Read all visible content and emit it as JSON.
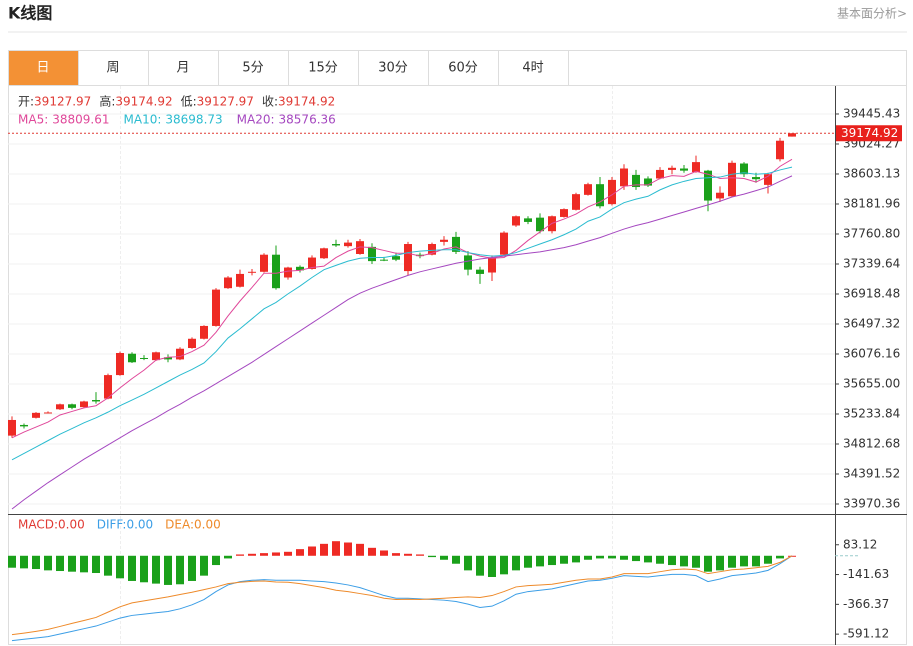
{
  "header": {
    "title": "K线图",
    "link": "基本面分析>"
  },
  "tabs": [
    "日",
    "周",
    "月",
    "5分",
    "15分",
    "30分",
    "60分",
    "4时"
  ],
  "chart_data": {
    "type": "candlestick",
    "up_color": "#ee2a24",
    "down_color": "#1aa01a",
    "ylim": [
      33844,
      39754
    ],
    "yticks": [
      39445.43,
      39024.27,
      38603.13,
      38181.96,
      {
        "value": 37760.8,
        "label": "37760.80"
      },
      37339.64,
      36918.48,
      36497.32,
      36076.16,
      {
        "value": 35655,
        "label": "35655.00"
      },
      35233.84,
      34812.68,
      34391.52,
      33970.36
    ],
    "grid": true,
    "ohlc_info": [
      {
        "label": "开:",
        "value": 39127.97
      },
      {
        "label": "高:",
        "value": 39174.92
      },
      {
        "label": "低:",
        "value": 39127.97
      },
      {
        "label": "收:",
        "value": 39174.92
      }
    ],
    "last_price": 39174.92,
    "candles": [
      {
        "open": 34930,
        "high": 35200,
        "low": 34900,
        "close": 35150
      },
      {
        "open": 35080,
        "high": 35100,
        "low": 35030,
        "close": 35060
      },
      {
        "open": 35180,
        "high": 35260,
        "low": 35170,
        "close": 35250
      },
      {
        "open": 35250,
        "high": 35270,
        "low": 35240,
        "close": 35255
      },
      {
        "open": 35300,
        "high": 35380,
        "low": 35290,
        "close": 35370
      },
      {
        "open": 35370,
        "high": 35380,
        "low": 35300,
        "close": 35320
      },
      {
        "open": 35330,
        "high": 35420,
        "low": 35320,
        "close": 35410
      },
      {
        "open": 35430,
        "high": 35540,
        "low": 35380,
        "close": 35410
      },
      {
        "open": 35450,
        "high": 35800,
        "low": 35440,
        "close": 35780
      },
      {
        "open": 35780,
        "high": 36110,
        "low": 35770,
        "close": 36090
      },
      {
        "open": 36080,
        "high": 36100,
        "low": 35950,
        "close": 35960
      },
      {
        "open": 36020,
        "high": 36060,
        "low": 35990,
        "close": 36010
      },
      {
        "open": 35990,
        "high": 36110,
        "low": 35980,
        "close": 36100
      },
      {
        "open": 36030,
        "high": 36070,
        "low": 35960,
        "close": 36000
      },
      {
        "open": 36000,
        "high": 36170,
        "low": 35990,
        "close": 36150
      },
      {
        "open": 36160,
        "high": 36310,
        "low": 36150,
        "close": 36290
      },
      {
        "open": 36290,
        "high": 36480,
        "low": 36280,
        "close": 36470
      },
      {
        "open": 36470,
        "high": 37000,
        "low": 36460,
        "close": 36980
      },
      {
        "open": 37000,
        "high": 37170,
        "low": 36990,
        "close": 37150
      },
      {
        "open": 37020,
        "high": 37260,
        "low": 37010,
        "close": 37200
      },
      {
        "open": 37220,
        "high": 37270,
        "low": 37180,
        "close": 37230
      },
      {
        "open": 37230,
        "high": 37490,
        "low": 37220,
        "close": 37470
      },
      {
        "open": 37470,
        "high": 37600,
        "low": 36980,
        "close": 37000
      },
      {
        "open": 37150,
        "high": 37300,
        "low": 37120,
        "close": 37290
      },
      {
        "open": 37300,
        "high": 37320,
        "low": 37220,
        "close": 37250
      },
      {
        "open": 37270,
        "high": 37460,
        "low": 37260,
        "close": 37430
      },
      {
        "open": 37420,
        "high": 37570,
        "low": 37410,
        "close": 37560
      },
      {
        "open": 37620,
        "high": 37680,
        "low": 37580,
        "close": 37600
      },
      {
        "open": 37590,
        "high": 37680,
        "low": 37570,
        "close": 37640
      },
      {
        "open": 37480,
        "high": 37690,
        "low": 37470,
        "close": 37660
      },
      {
        "open": 37580,
        "high": 37630,
        "low": 37340,
        "close": 37380
      },
      {
        "open": 37400,
        "high": 37440,
        "low": 37380,
        "close": 37390
      },
      {
        "open": 37450,
        "high": 37500,
        "low": 37380,
        "close": 37400
      },
      {
        "open": 37240,
        "high": 37650,
        "low": 37180,
        "close": 37620
      },
      {
        "open": 37470,
        "high": 37500,
        "low": 37420,
        "close": 37450
      },
      {
        "open": 37470,
        "high": 37640,
        "low": 37460,
        "close": 37620
      },
      {
        "open": 37650,
        "high": 37730,
        "low": 37600,
        "close": 37680
      },
      {
        "open": 37720,
        "high": 37790,
        "low": 37480,
        "close": 37510
      },
      {
        "open": 37460,
        "high": 37520,
        "low": 37180,
        "close": 37260
      },
      {
        "open": 37260,
        "high": 37300,
        "low": 37060,
        "close": 37200
      },
      {
        "open": 37220,
        "high": 37460,
        "low": 37100,
        "close": 37420
      },
      {
        "open": 37470,
        "high": 37800,
        "low": 37460,
        "close": 37780
      },
      {
        "open": 37880,
        "high": 38020,
        "low": 37860,
        "close": 38010
      },
      {
        "open": 37980,
        "high": 38010,
        "low": 37900,
        "close": 37930
      },
      {
        "open": 37990,
        "high": 38050,
        "low": 37770,
        "close": 37800
      },
      {
        "open": 37800,
        "high": 38020,
        "low": 37770,
        "close": 38010
      },
      {
        "open": 38000,
        "high": 38120,
        "low": 37990,
        "close": 38110
      },
      {
        "open": 38100,
        "high": 38340,
        "low": 38090,
        "close": 38320
      },
      {
        "open": 38310,
        "high": 38480,
        "low": 38300,
        "close": 38460
      },
      {
        "open": 38460,
        "high": 38560,
        "low": 38120,
        "close": 38150
      },
      {
        "open": 38180,
        "high": 38560,
        "low": 38160,
        "close": 38520
      },
      {
        "open": 38430,
        "high": 38740,
        "low": 38380,
        "close": 38680
      },
      {
        "open": 38590,
        "high": 38660,
        "low": 38380,
        "close": 38420
      },
      {
        "open": 38540,
        "high": 38570,
        "low": 38420,
        "close": 38440
      },
      {
        "open": 38540,
        "high": 38700,
        "low": 38530,
        "close": 38660
      },
      {
        "open": 38660,
        "high": 38720,
        "low": 38600,
        "close": 38690
      },
      {
        "open": 38680,
        "high": 38730,
        "low": 38620,
        "close": 38650
      },
      {
        "open": 38630,
        "high": 38860,
        "low": 38620,
        "close": 38770
      },
      {
        "open": 38650,
        "high": 38660,
        "low": 38080,
        "close": 38230
      },
      {
        "open": 38260,
        "high": 38430,
        "low": 38210,
        "close": 38340
      },
      {
        "open": 38290,
        "high": 38790,
        "low": 38280,
        "close": 38760
      },
      {
        "open": 38750,
        "high": 38770,
        "low": 38560,
        "close": 38600
      },
      {
        "open": 38560,
        "high": 38620,
        "low": 38480,
        "close": 38530
      },
      {
        "open": 38450,
        "high": 38620,
        "low": 38330,
        "close": 38600
      },
      {
        "open": 38810,
        "high": 39110,
        "low": 38780,
        "close": 39070
      },
      {
        "open": 39127.97,
        "high": 39174.92,
        "low": 39127.97,
        "close": 39174.92
      }
    ],
    "ma_series": [
      {
        "label": "MA5:",
        "latest": 38809.61,
        "color": "#e0489a",
        "values": [
          34900,
          34980,
          35050,
          35120,
          35220,
          35270,
          35320,
          35350,
          35460,
          35600,
          35730,
          35850,
          35990,
          36030,
          36040,
          36110,
          36200,
          36380,
          36610,
          36820,
          37010,
          37210,
          37210,
          37240,
          37250,
          37290,
          37310,
          37430,
          37520,
          37580,
          37570,
          37530,
          37490,
          37490,
          37450,
          37490,
          37550,
          37580,
          37500,
          37450,
          37420,
          37430,
          37530,
          37670,
          37790,
          37910,
          37970,
          38040,
          38140,
          38210,
          38310,
          38430,
          38450,
          38450,
          38540,
          38580,
          38570,
          38640,
          38600,
          38540,
          38550,
          38540,
          38490,
          38570,
          38710,
          38809.61
        ]
      },
      {
        "label": "MA10:",
        "latest": 38698.73,
        "color": "#2bbcd0",
        "values": [
          34590,
          34680,
          34770,
          34860,
          34950,
          35030,
          35110,
          35180,
          35260,
          35350,
          35430,
          35510,
          35600,
          35690,
          35780,
          35860,
          35950,
          36110,
          36300,
          36430,
          36570,
          36710,
          36800,
          36920,
          37030,
          37150,
          37260,
          37320,
          37380,
          37420,
          37430,
          37430,
          37460,
          37500,
          37520,
          37530,
          37540,
          37540,
          37500,
          37470,
          37450,
          37460,
          37500,
          37560,
          37620,
          37680,
          37750,
          37830,
          37940,
          38000,
          38110,
          38200,
          38250,
          38290,
          38380,
          38450,
          38500,
          38540,
          38550,
          38560,
          38600,
          38620,
          38600,
          38610,
          38660,
          38698.73
        ]
      },
      {
        "label": "MA20:",
        "latest": 38576.36,
        "color": "#a548c0",
        "values": [
          33900,
          34030,
          34150,
          34270,
          34380,
          34490,
          34600,
          34700,
          34800,
          34900,
          35000,
          35090,
          35180,
          35280,
          35370,
          35470,
          35560,
          35660,
          35760,
          35860,
          35960,
          36070,
          36180,
          36290,
          36400,
          36510,
          36620,
          36730,
          36840,
          36930,
          37000,
          37060,
          37120,
          37180,
          37230,
          37270,
          37310,
          37350,
          37380,
          37410,
          37430,
          37450,
          37470,
          37490,
          37510,
          37540,
          37570,
          37610,
          37660,
          37710,
          37770,
          37830,
          37880,
          37920,
          37970,
          38020,
          38070,
          38120,
          38170,
          38220,
          38280,
          38320,
          38370,
          38420,
          38500,
          38576.36
        ]
      }
    ],
    "macd": {
      "ylim": [
        -673,
        300
      ],
      "yticks": [
        83.12,
        -141.63,
        -366.37,
        -591.12
      ],
      "legend": [
        {
          "label": "MACD:",
          "value": "0.00",
          "color": "#e03a34"
        },
        {
          "label": "DIFF:",
          "value": "0.00",
          "color": "#3c9ee6"
        },
        {
          "label": "DEA:",
          "value": "0.00",
          "color": "#ee8a2a"
        }
      ],
      "histogram": [
        -90,
        -95,
        -100,
        -110,
        -115,
        -120,
        -125,
        -130,
        -150,
        -170,
        -190,
        -200,
        -210,
        -220,
        -215,
        -190,
        -150,
        -70,
        -20,
        10,
        15,
        20,
        25,
        30,
        50,
        70,
        90,
        110,
        100,
        90,
        60,
        40,
        20,
        15,
        10,
        -10,
        -30,
        -60,
        -110,
        -150,
        -160,
        -140,
        -110,
        -90,
        -80,
        -70,
        -60,
        -50,
        -30,
        -20,
        -20,
        -30,
        -40,
        -50,
        -60,
        -70,
        -80,
        -90,
        -120,
        -110,
        -90,
        -80,
        -80,
        -60,
        -20,
        0
      ],
      "diff": [
        -640,
        -630,
        -620,
        -610,
        -590,
        -570,
        -550,
        -530,
        -500,
        -470,
        -450,
        -440,
        -430,
        -420,
        -400,
        -370,
        -330,
        -270,
        -220,
        -195,
        -185,
        -180,
        -185,
        -185,
        -185,
        -190,
        -195,
        -205,
        -220,
        -240,
        -270,
        -300,
        -320,
        -320,
        -325,
        -330,
        -335,
        -345,
        -365,
        -390,
        -380,
        -340,
        -290,
        -270,
        -260,
        -250,
        -230,
        -210,
        -190,
        -185,
        -170,
        -150,
        -155,
        -160,
        -150,
        -140,
        -140,
        -150,
        -195,
        -175,
        -150,
        -140,
        -130,
        -110,
        -60,
        0
      ],
      "dea": [
        -595,
        -583,
        -570,
        -555,
        -533,
        -510,
        -488,
        -465,
        -425,
        -385,
        -355,
        -340,
        -325,
        -310,
        -292,
        -275,
        -255,
        -235,
        -210,
        -200,
        -193,
        -190,
        -198,
        -200,
        -210,
        -225,
        -240,
        -260,
        -270,
        -285,
        -300,
        -320,
        -330,
        -328,
        -330,
        -325,
        -320,
        -315,
        -310,
        -315,
        -300,
        -270,
        -235,
        -225,
        -220,
        -215,
        -200,
        -185,
        -175,
        -175,
        -160,
        -135,
        -135,
        -135,
        -120,
        -105,
        -100,
        -105,
        -135,
        -120,
        -105,
        -100,
        -90,
        -80,
        -50,
        0
      ]
    }
  }
}
